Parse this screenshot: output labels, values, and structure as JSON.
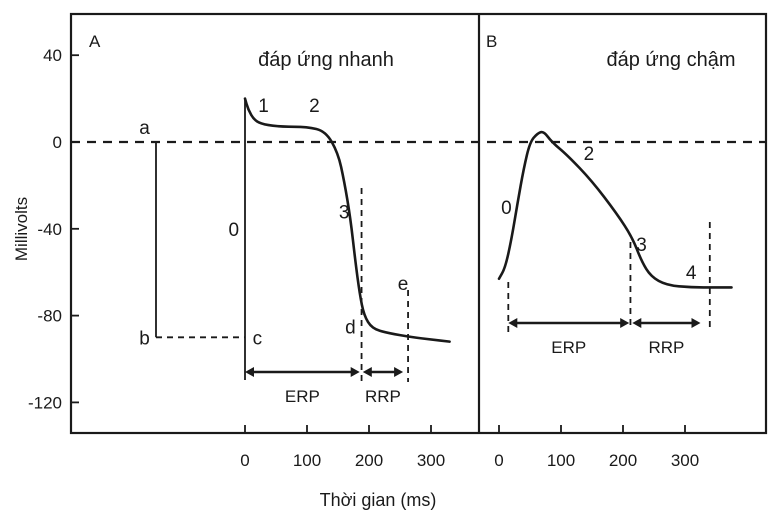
{
  "chart_data": [
    {
      "type": "line",
      "panel_label": "A",
      "title": "đáp ứng nhanh",
      "xlabel": "Thời gian (ms)",
      "ylabel": "Millivolts",
      "ylim": [
        -135,
        55
      ],
      "xlim": [
        -95,
        345
      ],
      "x_ticks": [
        0,
        100,
        200,
        300
      ],
      "y_ticks": [
        40,
        0,
        -40,
        -80,
        -120
      ],
      "series": [
        {
          "points": [
            [
              0,
              20
            ],
            [
              5,
              15
            ],
            [
              15,
              10
            ],
            [
              30,
              8
            ],
            [
              60,
              7
            ],
            [
              100,
              7
            ],
            [
              130,
              5
            ],
            [
              150,
              -5
            ],
            [
              160,
              -18
            ],
            [
              170,
              -35
            ],
            [
              178,
              -55
            ],
            [
              185,
              -70
            ],
            [
              192,
              -80
            ],
            [
              205,
              -86
            ],
            [
              230,
              -88
            ],
            [
              270,
              -90
            ],
            [
              300,
              -91
            ],
            [
              330,
              -92
            ]
          ]
        }
      ],
      "phase_labels": [
        {
          "text": "0",
          "x": -18,
          "y": -40
        },
        {
          "text": "1",
          "x": 30,
          "y": 17
        },
        {
          "text": "2",
          "x": 112,
          "y": 17
        },
        {
          "text": "3",
          "x": 160,
          "y": -32
        },
        {
          "text": "a",
          "x": -162,
          "y": 7
        },
        {
          "text": "b",
          "x": -162,
          "y": -90
        },
        {
          "text": "c",
          "x": 20,
          "y": -90
        },
        {
          "text": "d",
          "x": 170,
          "y": -85
        },
        {
          "text": "e",
          "x": 255,
          "y": -65
        }
      ],
      "intervals": [
        {
          "label": "ERP",
          "x_start": 0,
          "x_end": 185
        },
        {
          "label": "RRP",
          "x_start": 190,
          "x_end": 255
        }
      ]
    },
    {
      "type": "line",
      "panel_label": "B",
      "title": "đáp ứng chậm",
      "xlabel": "Thời gian (ms)",
      "ylabel": "Millivolts",
      "ylim": [
        -135,
        55
      ],
      "xlim": [
        -30,
        385
      ],
      "x_ticks": [
        0,
        100,
        200,
        300
      ],
      "y_ticks": [
        40,
        0,
        -40,
        -80,
        -120
      ],
      "series": [
        {
          "points": [
            [
              0,
              -63
            ],
            [
              10,
              -58
            ],
            [
              20,
              -45
            ],
            [
              30,
              -28
            ],
            [
              40,
              -12
            ],
            [
              50,
              0
            ],
            [
              62,
              4
            ],
            [
              72,
              5
            ],
            [
              85,
              0
            ],
            [
              110,
              -6
            ],
            [
              150,
              -18
            ],
            [
              190,
              -33
            ],
            [
              215,
              -44
            ],
            [
              230,
              -55
            ],
            [
              245,
              -62
            ],
            [
              270,
              -66
            ],
            [
              310,
              -67
            ],
            [
              350,
              -67
            ],
            [
              375,
              -67
            ]
          ]
        }
      ],
      "phase_labels": [
        {
          "text": "0",
          "x": 12,
          "y": -30
        },
        {
          "text": "2",
          "x": 145,
          "y": -5
        },
        {
          "text": "3",
          "x": 230,
          "y": -47
        },
        {
          "text": "4",
          "x": 310,
          "y": -60
        }
      ],
      "intervals": [
        {
          "label": "ERP",
          "x_start": 15,
          "x_end": 210
        },
        {
          "label": "RRP",
          "x_start": 215,
          "x_end": 325
        }
      ]
    }
  ]
}
